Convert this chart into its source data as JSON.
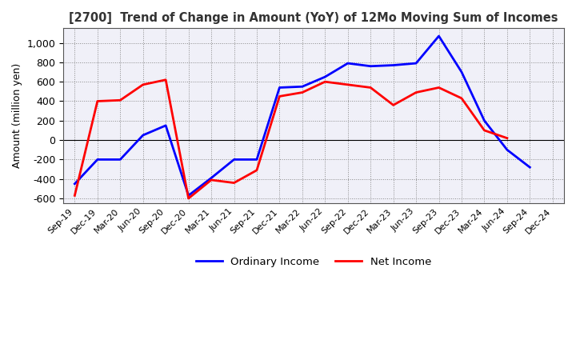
{
  "title": "[2700]  Trend of Change in Amount (YoY) of 12Mo Moving Sum of Incomes",
  "ylabel": "Amount (million yen)",
  "ylim": [
    -650,
    1150
  ],
  "yticks": [
    -600,
    -400,
    -200,
    0,
    200,
    400,
    600,
    800,
    1000
  ],
  "x_labels": [
    "Sep-19",
    "Dec-19",
    "Mar-20",
    "Jun-20",
    "Sep-20",
    "Dec-20",
    "Mar-21",
    "Jun-21",
    "Sep-21",
    "Dec-21",
    "Mar-22",
    "Jun-22",
    "Sep-22",
    "Dec-22",
    "Mar-23",
    "Jun-23",
    "Sep-23",
    "Dec-23",
    "Mar-24",
    "Jun-24",
    "Sep-24",
    "Dec-24"
  ],
  "ordinary_income": [
    -450,
    -200,
    -200,
    50,
    150,
    -570,
    -390,
    -200,
    -200,
    540,
    550,
    650,
    790,
    760,
    770,
    790,
    1070,
    700,
    200,
    -100,
    -280,
    null
  ],
  "net_income": [
    -570,
    400,
    410,
    570,
    620,
    -600,
    -410,
    -440,
    -310,
    450,
    490,
    600,
    570,
    540,
    360,
    490,
    540,
    430,
    100,
    20,
    null,
    null
  ],
  "ordinary_color": "#0000FF",
  "net_color": "#FF0000",
  "bg_color": "#FFFFFF",
  "plot_bg_color": "#F0F0F8",
  "grid_color": "#888888",
  "line_width": 2.0,
  "legend_oi": "Ordinary Income",
  "legend_ni": "Net Income",
  "title_color": "#333333"
}
